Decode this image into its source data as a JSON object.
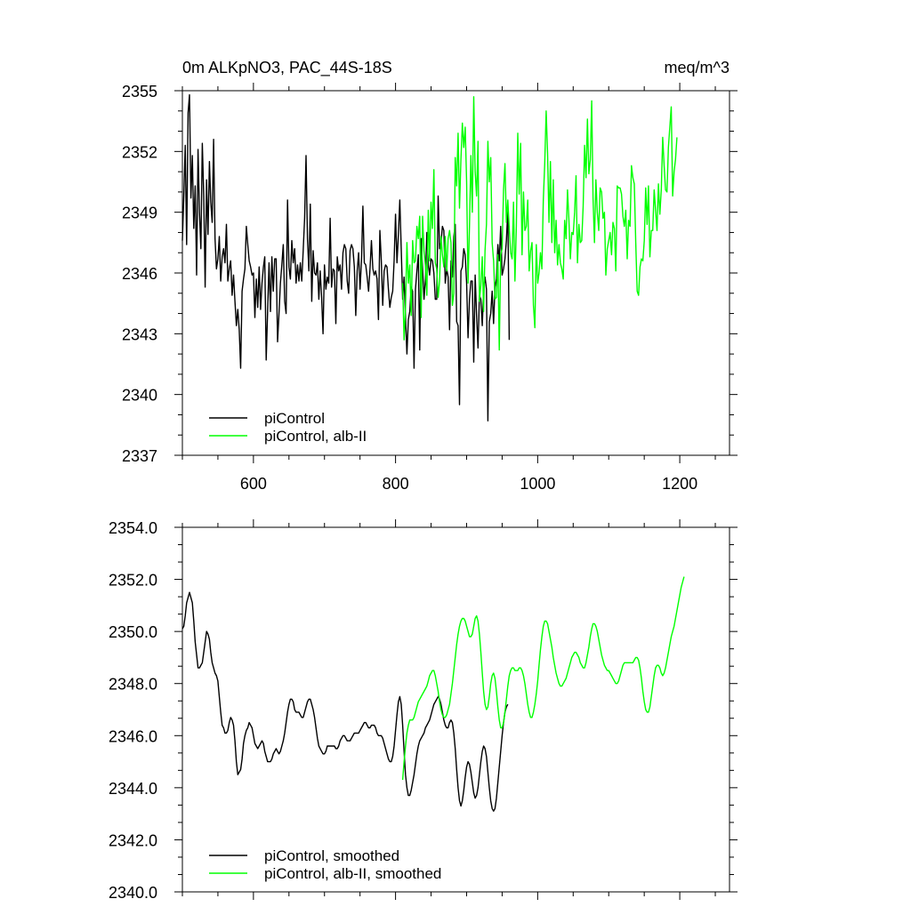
{
  "chart_data": [
    {
      "type": "line",
      "title_left": "0m ALKpNO3, PAC_44S-18S",
      "title_right": "meq/m^3",
      "xlim": [
        500,
        1270
      ],
      "ylim": [
        2337,
        2355
      ],
      "x_ticks": [
        600,
        800,
        1000,
        1200
      ],
      "x_tick_labels": [
        "600",
        "800",
        "1000",
        "1200"
      ],
      "y_ticks": [
        2337,
        2340,
        2343,
        2346,
        2349,
        2352,
        2355
      ],
      "y_tick_labels": [
        "2337",
        "2340",
        "2343",
        "2346",
        "2349",
        "2352",
        "2355"
      ],
      "legend_position": "bottom-left",
      "series": [
        {
          "name": "piControl",
          "color": "#000000",
          "x_start": 500,
          "x_step": 2,
          "values": [
            2347.6,
            2349.8,
            2352.3,
            2347.4,
            2353.9,
            2354.8,
            2349.7,
            2351.8,
            2348.2,
            2350.3,
            2345.9,
            2352.1,
            2349.0,
            2347.2,
            2352.4,
            2349.8,
            2345.3,
            2350.6,
            2347.9,
            2351.5,
            2349.5,
            2348.5,
            2352.6,
            2347.7,
            2346.2,
            2346.7,
            2347.8,
            2345.6,
            2346.8,
            2347.2,
            2346.5,
            2348.4,
            2345.6,
            2346.2,
            2346.6,
            2344.9,
            2345.9,
            2344.6,
            2343.4,
            2344.2,
            2343.2,
            2341.3,
            2345.1,
            2345.7,
            2346.2,
            2348.3,
            2347.4,
            2346.6,
            2346.3,
            2345.9,
            2346.0,
            2343.8,
            2345.7,
            2344.3,
            2346.3,
            2344.2,
            2345.5,
            2346.3,
            2346.8,
            2341.7,
            2344.1,
            2346.5,
            2344.1,
            2346.8,
            2345.1,
            2346.7,
            2346.7,
            2342.6,
            2344.0,
            2345.5,
            2346.4,
            2347.4,
            2344.6,
            2344.0,
            2349.6,
            2346.3,
            2345.7,
            2347.6,
            2346.5,
            2347.2,
            2345.5,
            2346.4,
            2345.6,
            2346.5,
            2345.6,
            2347.1,
            2348.7,
            2351.8,
            2347.7,
            2346.1,
            2349.4,
            2344.6,
            2347.1,
            2346.0,
            2345.9,
            2346.5,
            2344.7,
            2346.1,
            2344.8,
            2343.0,
            2346.4,
            2345.2,
            2345.8,
            2345.5,
            2348.7,
            2345.3,
            2346.2,
            2346.1,
            2343.5,
            2346.8,
            2346.1,
            2346.4,
            2345.2,
            2347.0,
            2347.4,
            2347.2,
            2345.6,
            2345.0,
            2347.1,
            2347.4,
            2347.2,
            2346.3,
            2343.9,
            2346.1,
            2347.0,
            2345.2,
            2346.6,
            2349.3,
            2346.5,
            2346.4,
            2345.8,
            2345.1,
            2346.2,
            2347.6,
            2346.2,
            2345.9,
            2346.1,
            2345.7,
            2343.7,
            2348.1,
            2346.6,
            2344.4,
            2346.1,
            2346.4,
            2346.3,
            2345.2,
            2344.3,
            2344.8,
            2345.1,
            2346.6,
            2348.9,
            2346.5,
            2347.9,
            2349.6,
            2347.2,
            2344.7,
            2345.8,
            2343.8,
            2342.0,
            2343.7,
            2344.1,
            2345.3,
            2345.1,
            2341.3,
            2345.2,
            2346.1,
            2346.9,
            2342.2,
            2347.7,
            2346.2,
            2344.7,
            2345.7,
            2348.0,
            2346.4,
            2345.9,
            2346.7,
            2346.6,
            2346.0,
            2344.7,
            2344.7,
            2349.8,
            2347.2,
            2347.5,
            2348.3,
            2348.1,
            2345.5,
            2346.2,
            2345.8,
            2343.2,
            2346.6,
            2345.8,
            2347.8,
            2348.4,
            2343.6,
            2343.4,
            2339.5,
            2346.1,
            2346.3,
            2347.2,
            2346.9,
            2345.5,
            2342.8,
            2344.7,
            2345.6,
            2345.6,
            2341.6,
            2345.9,
            2343.9,
            2342.3,
            2344.9,
            2344.7,
            2343.4,
            2345.2,
            2345.8,
            2345.2,
            2338.7,
            2343.6,
            2344.0,
            2345.1,
            2343.5,
            2345.3,
            2345.7,
            2347.4,
            2346.6,
            2348.3,
            2345.9,
            2346.2,
            2346.7,
            2347.6,
            2349.1,
            2342.7
          ]
        },
        {
          "name": "piControl, alb-II",
          "color": "#00ff00",
          "x_start": 810,
          "x_step": 2,
          "values": [
            2345.5,
            2342.7,
            2344.3,
            2347.5,
            2345.5,
            2346.4,
            2343.9,
            2347.6,
            2346.5,
            2346.6,
            2348.3,
            2347.7,
            2348.8,
            2343.8,
            2348.8,
            2347.1,
            2346.4,
            2344.9,
            2349.1,
            2346.6,
            2349.5,
            2348.2,
            2351.1,
            2346.5,
            2346.2,
            2344.8,
            2345.6,
            2347.8,
            2346.9,
            2346.3,
            2347.8,
            2346.1,
            2347.7,
            2348.1,
            2347.5,
            2344.4,
            2345.0,
            2351.7,
            2350.3,
            2352.9,
            2349.2,
            2351.6,
            2353.4,
            2352.2,
            2353.2,
            2350.5,
            2345.5,
            2348.3,
            2351.8,
            2349.0,
            2354.7,
            2351.0,
            2349.8,
            2352.5,
            2344.6,
            2345.4,
            2346.8,
            2344.1,
            2347.1,
            2348.4,
            2352.5,
            2350.5,
            2351.7,
            2347.5,
            2346.6,
            2344.7,
            2344.8,
            2346.9,
            2342.2,
            2346.9,
            2347.2,
            2350.1,
            2351.4,
            2348.5,
            2349.6,
            2348.2,
            2347.0,
            2346.7,
            2349.5,
            2345.6,
            2348.3,
            2352.9,
            2349.9,
            2352.4,
            2346.9,
            2350.0,
            2348.1,
            2348.3,
            2349.6,
            2346.1,
            2347.1,
            2347.5,
            2344.4,
            2343.3,
            2347.4,
            2345.5,
            2346.0,
            2347.0,
            2346.2,
            2349.6,
            2351.4,
            2354.0,
            2351.9,
            2348.5,
            2351.5,
            2347.5,
            2350.6,
            2347.0,
            2348.6,
            2346.4,
            2347.4,
            2346.5,
            2346.2,
            2345.7,
            2348.6,
            2347.7,
            2350.1,
            2348.6,
            2346.7,
            2348.0,
            2347.9,
            2349.0,
            2350.8,
            2346.5,
            2348.4,
            2347.5,
            2347.6,
            2349.3,
            2352.3,
            2350.7,
            2353.6,
            2350.9,
            2351.6,
            2354.5,
            2349.7,
            2347.5,
            2350.6,
            2349.0,
            2348.1,
            2350.2,
            2350.0,
            2348.7,
            2349.0,
            2345.9,
            2347.2,
            2347.6,
            2348.0,
            2346.9,
            2348.5,
            2348.2,
            2346.1,
            2350.3,
            2350.2,
            2350.2,
            2349.9,
            2348.8,
            2348.3,
            2349.1,
            2346.7,
            2348.6,
            2348.3,
            2351.3,
            2350.7,
            2350.4,
            2347.5,
            2345.1,
            2344.9,
            2346.3,
            2346.7,
            2346.6,
            2347.6,
            2350.2,
            2348.4,
            2350.3,
            2346.8,
            2348.1,
            2348.1,
            2350.1,
            2349.1,
            2348.1,
            2350.4,
            2348.9,
            2350.1,
            2352.7,
            2351.3,
            2350.1,
            2350.0,
            2352.2,
            2353.2,
            2354.2,
            2349.8,
            2351.0,
            2351.6,
            2352.7
          ]
        }
      ]
    },
    {
      "type": "line",
      "xlim": [
        500,
        1270
      ],
      "ylim": [
        2340,
        2354
      ],
      "x_ticks": [
        600,
        800,
        1000,
        1200
      ],
      "y_ticks": [
        2340,
        2342,
        2344,
        2346,
        2348,
        2350,
        2352,
        2354
      ],
      "y_tick_labels": [
        "2340.0",
        "2342.0",
        "2344.0",
        "2346.0",
        "2348.0",
        "2350.0",
        "2352.0",
        "2354.0"
      ],
      "legend_position": "bottom-left",
      "series": [
        {
          "name": "piControl, smoothed",
          "color": "#000000",
          "x_start": 500,
          "x_step": 2,
          "values": [
            2350.1,
            2350.2,
            2350.6,
            2351.1,
            2351.3,
            2351.5,
            2351.3,
            2351.1,
            2350.4,
            2349.6,
            2349.1,
            2348.6,
            2348.6,
            2348.7,
            2348.8,
            2349.2,
            2349.6,
            2350.0,
            2349.9,
            2349.7,
            2349.2,
            2348.8,
            2348.6,
            2348.4,
            2348.3,
            2348.1,
            2347.5,
            2346.9,
            2346.4,
            2346.3,
            2346.1,
            2346.1,
            2346.2,
            2346.5,
            2346.7,
            2346.6,
            2346.4,
            2345.8,
            2345.0,
            2344.5,
            2344.6,
            2344.7,
            2345.1,
            2345.7,
            2346.0,
            2346.2,
            2346.3,
            2346.5,
            2346.4,
            2346.3,
            2346.0,
            2345.7,
            2345.6,
            2345.5,
            2345.6,
            2345.7,
            2345.8,
            2345.7,
            2345.4,
            2345.2,
            2345.0,
            2345.0,
            2345.0,
            2345.1,
            2345.3,
            2345.4,
            2345.5,
            2345.4,
            2345.3,
            2345.4,
            2345.6,
            2345.8,
            2346.1,
            2346.5,
            2346.9,
            2347.2,
            2347.4,
            2347.4,
            2347.3,
            2347.0,
            2346.9,
            2346.9,
            2346.9,
            2346.8,
            2346.7,
            2346.7,
            2346.9,
            2347.1,
            2347.3,
            2347.4,
            2347.4,
            2347.2,
            2347.0,
            2346.7,
            2346.3,
            2345.9,
            2345.6,
            2345.5,
            2345.4,
            2345.3,
            2345.3,
            2345.4,
            2345.6,
            2345.6,
            2345.6,
            2345.6,
            2345.6,
            2345.6,
            2345.5,
            2345.5,
            2345.6,
            2345.8,
            2345.9,
            2346.0,
            2346.0,
            2345.9,
            2345.8,
            2345.8,
            2345.8,
            2345.9,
            2346.0,
            2346.1,
            2346.1,
            2346.1,
            2346.1,
            2346.2,
            2346.3,
            2346.4,
            2346.5,
            2346.5,
            2346.4,
            2346.3,
            2346.3,
            2346.4,
            2346.4,
            2346.4,
            2346.3,
            2346.1,
            2346.0,
            2346.0,
            2346.0,
            2345.9,
            2345.7,
            2345.5,
            2345.3,
            2345.1,
            2345.0,
            2345.0,
            2345.2,
            2345.6,
            2346.2,
            2346.8,
            2347.3,
            2347.5,
            2347.2,
            2346.4,
            2345.4,
            2344.5,
            2344.0,
            2343.7,
            2343.7,
            2343.9,
            2344.2,
            2344.5,
            2344.9,
            2345.3,
            2345.6,
            2345.8,
            2345.9,
            2346.0,
            2346.1,
            2346.3,
            2346.4,
            2346.5,
            2346.6,
            2346.8,
            2347.0,
            2347.2,
            2347.3,
            2347.4,
            2347.5,
            2347.4,
            2347.2,
            2346.9,
            2346.6,
            2346.4,
            2346.3,
            2346.3,
            2346.5,
            2346.6,
            2346.5,
            2346.1,
            2345.5,
            2344.7,
            2344.0,
            2343.5,
            2343.3,
            2343.5,
            2343.9,
            2344.4,
            2344.8,
            2345.0,
            2344.9,
            2344.6,
            2344.2,
            2343.8,
            2343.6,
            2343.7,
            2344.0,
            2344.5,
            2345.0,
            2345.4,
            2345.6,
            2345.5,
            2345.2,
            2344.6,
            2344.0,
            2343.5,
            2343.2,
            2343.1,
            2343.2,
            2343.6,
            2344.2,
            2344.8,
            2345.4,
            2346.0,
            2346.5,
            2346.9,
            2347.1,
            2347.2
          ]
        },
        {
          "name": "piControl, alb-II, smoothed",
          "color": "#00ff00",
          "x_start": 810,
          "x_step": 2,
          "values": [
            2344.3,
            2345.0,
            2345.6,
            2346.1,
            2346.4,
            2346.6,
            2346.6,
            2346.6,
            2346.7,
            2346.9,
            2347.1,
            2347.3,
            2347.4,
            2347.5,
            2347.6,
            2347.7,
            2347.8,
            2347.9,
            2348.1,
            2348.3,
            2348.4,
            2348.5,
            2348.5,
            2348.3,
            2348.0,
            2347.7,
            2347.3,
            2347.0,
            2346.8,
            2346.7,
            2346.7,
            2346.8,
            2347.0,
            2347.2,
            2347.6,
            2348.0,
            2348.5,
            2349.0,
            2349.5,
            2349.9,
            2350.2,
            2350.4,
            2350.5,
            2350.5,
            2350.4,
            2350.2,
            2350.0,
            2349.8,
            2349.8,
            2349.9,
            2350.2,
            2350.5,
            2350.6,
            2350.4,
            2349.9,
            2349.2,
            2348.4,
            2347.7,
            2347.2,
            2347.0,
            2347.1,
            2347.5,
            2348.0,
            2348.3,
            2348.4,
            2348.2,
            2347.7,
            2347.1,
            2346.6,
            2346.3,
            2346.3,
            2346.5,
            2346.9,
            2347.4,
            2347.9,
            2348.3,
            2348.5,
            2348.6,
            2348.6,
            2348.5,
            2348.5,
            2348.5,
            2348.6,
            2348.6,
            2348.5,
            2348.3,
            2348.0,
            2347.6,
            2347.2,
            2346.9,
            2346.7,
            2346.7,
            2346.9,
            2347.2,
            2347.6,
            2348.1,
            2348.7,
            2349.3,
            2349.8,
            2350.2,
            2350.4,
            2350.4,
            2350.3,
            2350.0,
            2349.7,
            2349.4,
            2349.0,
            2348.7,
            2348.4,
            2348.2,
            2348.0,
            2347.9,
            2347.9,
            2348.0,
            2348.1,
            2348.2,
            2348.4,
            2348.6,
            2348.8,
            2349.0,
            2349.1,
            2349.2,
            2349.2,
            2349.1,
            2349.0,
            2348.8,
            2348.7,
            2348.6,
            2348.6,
            2348.8,
            2349.1,
            2349.4,
            2349.8,
            2350.1,
            2350.3,
            2350.3,
            2350.2,
            2350.0,
            2349.7,
            2349.4,
            2349.1,
            2348.9,
            2348.7,
            2348.6,
            2348.5,
            2348.5,
            2348.4,
            2348.3,
            2348.2,
            2348.1,
            2348.0,
            2348.0,
            2348.1,
            2348.3,
            2348.5,
            2348.7,
            2348.8,
            2348.8,
            2348.8,
            2348.8,
            2348.8,
            2348.8,
            2348.8,
            2348.9,
            2349.0,
            2349.0,
            2348.9,
            2348.6,
            2348.2,
            2347.7,
            2347.3,
            2347.0,
            2346.9,
            2346.9,
            2347.1,
            2347.5,
            2347.9,
            2348.3,
            2348.6,
            2348.7,
            2348.7,
            2348.6,
            2348.4,
            2348.3,
            2348.4,
            2348.6,
            2348.9,
            2349.2,
            2349.5,
            2349.8,
            2350.0,
            2350.2,
            2350.5,
            2350.8,
            2351.1,
            2351.4,
            2351.7,
            2351.9,
            2352.1
          ]
        }
      ]
    }
  ]
}
